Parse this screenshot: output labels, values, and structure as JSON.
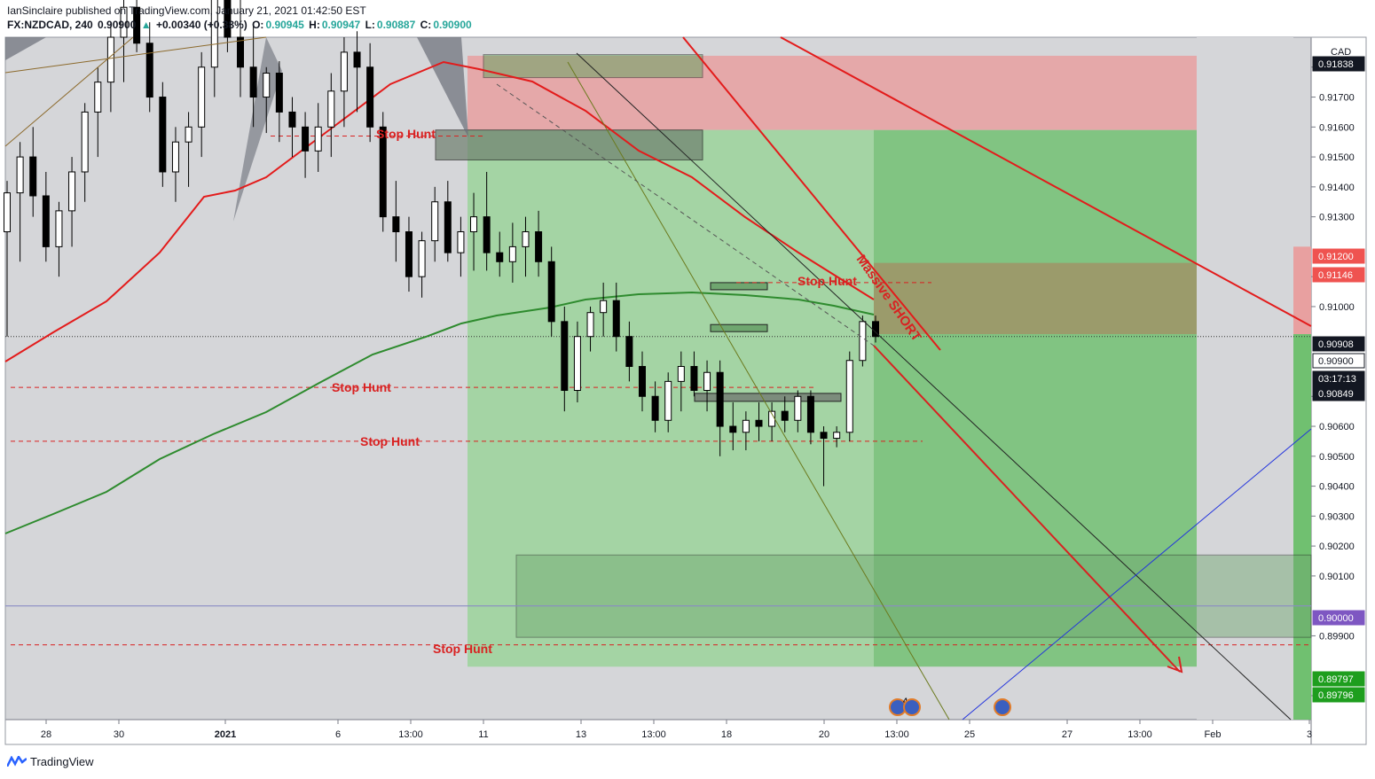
{
  "header": {
    "published_line": "IanSinclaire published on TradingView.com, January 21, 2021 01:42:50 EST",
    "symbol": "FX:NZDCAD, 240",
    "last": "0.90900",
    "change": "+0.00340 (+0.38%)",
    "o_label": "O:",
    "o": "0.90945",
    "h_label": "H:",
    "h": "0.90947",
    "l_label": "L:",
    "l": "0.90887",
    "c_label": "C:",
    "c": "0.90900"
  },
  "footer": {
    "brand": "TradingView"
  },
  "colors": {
    "up": "#ffffff",
    "down": "#000000",
    "ma_fast": "#e31b1b",
    "ma_slow": "#2e8b2e",
    "target_zone": "#6bbf6b",
    "stop_zone": "#e8a0a0",
    "annotation": "#d92121",
    "price_tag": "#131722"
  },
  "chart_data": {
    "type": "candlestick",
    "currency": "CAD",
    "ylim": [
      0.8962,
      0.919
    ],
    "x_ticks": [
      "28",
      "30",
      "2021",
      "6",
      "13:00",
      "11",
      "13",
      "13:00",
      "18",
      "20",
      "13:00",
      "25",
      "27",
      "13:00",
      "Feb",
      "3"
    ],
    "y_ticks": [
      "0.91800",
      "0.91700",
      "0.91600",
      "0.91500",
      "0.91400",
      "0.91300",
      "0.91100",
      "0.91000",
      "0.90700",
      "0.90600",
      "0.90500",
      "0.90400",
      "0.90300",
      "0.90200",
      "0.90100",
      "0.89900",
      "0.89700"
    ],
    "price_labels": [
      {
        "value": "0.91838",
        "kind": "dark"
      },
      {
        "value": "0.91200",
        "kind": "red"
      },
      {
        "value": "0.91146",
        "kind": "red"
      },
      {
        "value": "0.90908",
        "kind": "dark"
      },
      {
        "value": "0.90900",
        "kind": "white"
      },
      {
        "value": "03:17:13",
        "kind": "dark"
      },
      {
        "value": "0.90849",
        "kind": "dark"
      },
      {
        "value": "0.90000",
        "kind": "purple"
      },
      {
        "value": "0.89797",
        "kind": "green"
      },
      {
        "value": "0.89796",
        "kind": "green"
      }
    ],
    "annotations": [
      {
        "text": "Stop Hunt",
        "price": 0.9157
      },
      {
        "text": "Stop Hunt",
        "price": 0.911
      },
      {
        "text": "Stop Hunt",
        "price": 0.9073
      },
      {
        "text": "Stop Hunt",
        "price": 0.9055
      },
      {
        "text": "Stop Hunt",
        "price": 0.8987
      },
      {
        "text": "Massive SHORT",
        "price": 0.9105
      }
    ],
    "position": {
      "side": "short",
      "entry": 0.90908,
      "stop": 0.91146,
      "target": 0.89797,
      "prior_short": {
        "entry": 0.9159,
        "stop": 0.91838,
        "target": 0.89797
      }
    },
    "levels": [
      {
        "name": "stop-hunt-1",
        "value": 0.9157
      },
      {
        "name": "stop-hunt-2",
        "value": 0.9108
      },
      {
        "name": "stop-hunt-3",
        "value": 0.9073
      },
      {
        "name": "stop-hunt-4",
        "value": 0.9055
      },
      {
        "name": "stop-hunt-5",
        "value": 0.8987
      },
      {
        "name": "round-number",
        "value": 0.9
      },
      {
        "name": "last-price",
        "value": 0.909
      }
    ],
    "event_badges": [
      {
        "count": "4"
      },
      {
        "count": ""
      },
      {
        "count": ""
      }
    ],
    "candles": [
      {
        "o": 0.9125,
        "h": 0.9142,
        "l": 0.909,
        "c": 0.9138
      },
      {
        "o": 0.9138,
        "h": 0.9155,
        "l": 0.9115,
        "c": 0.915
      },
      {
        "o": 0.915,
        "h": 0.916,
        "l": 0.913,
        "c": 0.9137
      },
      {
        "o": 0.9137,
        "h": 0.9145,
        "l": 0.9115,
        "c": 0.912
      },
      {
        "o": 0.912,
        "h": 0.9135,
        "l": 0.911,
        "c": 0.9132
      },
      {
        "o": 0.9132,
        "h": 0.915,
        "l": 0.912,
        "c": 0.9145
      },
      {
        "o": 0.9145,
        "h": 0.9168,
        "l": 0.9135,
        "c": 0.9165
      },
      {
        "o": 0.9165,
        "h": 0.918,
        "l": 0.915,
        "c": 0.9175
      },
      {
        "o": 0.9175,
        "h": 0.9195,
        "l": 0.9165,
        "c": 0.919
      },
      {
        "o": 0.919,
        "h": 0.921,
        "l": 0.9175,
        "c": 0.92
      },
      {
        "o": 0.92,
        "h": 0.9215,
        "l": 0.9185,
        "c": 0.9188
      },
      {
        "o": 0.9188,
        "h": 0.9195,
        "l": 0.9165,
        "c": 0.917
      },
      {
        "o": 0.917,
        "h": 0.9175,
        "l": 0.914,
        "c": 0.9145
      },
      {
        "o": 0.9145,
        "h": 0.916,
        "l": 0.9135,
        "c": 0.9155
      },
      {
        "o": 0.9155,
        "h": 0.9165,
        "l": 0.914,
        "c": 0.916
      },
      {
        "o": 0.916,
        "h": 0.9185,
        "l": 0.915,
        "c": 0.918
      },
      {
        "o": 0.918,
        "h": 0.921,
        "l": 0.917,
        "c": 0.9205
      },
      {
        "o": 0.9205,
        "h": 0.9215,
        "l": 0.9185,
        "c": 0.919
      },
      {
        "o": 0.919,
        "h": 0.9205,
        "l": 0.917,
        "c": 0.918
      },
      {
        "o": 0.918,
        "h": 0.9195,
        "l": 0.916,
        "c": 0.917
      },
      {
        "o": 0.917,
        "h": 0.918,
        "l": 0.9158,
        "c": 0.9178
      },
      {
        "o": 0.9178,
        "h": 0.9182,
        "l": 0.9155,
        "c": 0.9165
      },
      {
        "o": 0.9165,
        "h": 0.917,
        "l": 0.915,
        "c": 0.916
      },
      {
        "o": 0.916,
        "h": 0.9165,
        "l": 0.9143,
        "c": 0.9152
      },
      {
        "o": 0.9152,
        "h": 0.9168,
        "l": 0.9145,
        "c": 0.916
      },
      {
        "o": 0.916,
        "h": 0.9178,
        "l": 0.915,
        "c": 0.9172
      },
      {
        "o": 0.9172,
        "h": 0.919,
        "l": 0.916,
        "c": 0.9185
      },
      {
        "o": 0.9185,
        "h": 0.9192,
        "l": 0.9165,
        "c": 0.918
      },
      {
        "o": 0.918,
        "h": 0.9188,
        "l": 0.9155,
        "c": 0.916
      },
      {
        "o": 0.916,
        "h": 0.9165,
        "l": 0.9125,
        "c": 0.913
      },
      {
        "o": 0.913,
        "h": 0.9142,
        "l": 0.9115,
        "c": 0.9125
      },
      {
        "o": 0.9125,
        "h": 0.913,
        "l": 0.9105,
        "c": 0.911
      },
      {
        "o": 0.911,
        "h": 0.9125,
        "l": 0.9103,
        "c": 0.9122
      },
      {
        "o": 0.9122,
        "h": 0.914,
        "l": 0.9115,
        "c": 0.9135
      },
      {
        "o": 0.9135,
        "h": 0.9142,
        "l": 0.9115,
        "c": 0.9118
      },
      {
        "o": 0.9118,
        "h": 0.913,
        "l": 0.911,
        "c": 0.9125
      },
      {
        "o": 0.9125,
        "h": 0.9138,
        "l": 0.9112,
        "c": 0.913
      },
      {
        "o": 0.913,
        "h": 0.9145,
        "l": 0.9112,
        "c": 0.9118
      },
      {
        "o": 0.9118,
        "h": 0.9125,
        "l": 0.911,
        "c": 0.9115
      },
      {
        "o": 0.9115,
        "h": 0.9128,
        "l": 0.9108,
        "c": 0.912
      },
      {
        "o": 0.912,
        "h": 0.913,
        "l": 0.911,
        "c": 0.9125
      },
      {
        "o": 0.9125,
        "h": 0.9132,
        "l": 0.911,
        "c": 0.9115
      },
      {
        "o": 0.9115,
        "h": 0.912,
        "l": 0.909,
        "c": 0.9095
      },
      {
        "o": 0.9095,
        "h": 0.91,
        "l": 0.9065,
        "c": 0.9072
      },
      {
        "o": 0.9072,
        "h": 0.9095,
        "l": 0.9068,
        "c": 0.909
      },
      {
        "o": 0.909,
        "h": 0.91,
        "l": 0.9085,
        "c": 0.9098
      },
      {
        "o": 0.9098,
        "h": 0.9108,
        "l": 0.909,
        "c": 0.9102
      },
      {
        "o": 0.9102,
        "h": 0.9108,
        "l": 0.9085,
        "c": 0.909
      },
      {
        "o": 0.909,
        "h": 0.9095,
        "l": 0.9075,
        "c": 0.908
      },
      {
        "o": 0.908,
        "h": 0.9085,
        "l": 0.9065,
        "c": 0.907
      },
      {
        "o": 0.907,
        "h": 0.9075,
        "l": 0.9058,
        "c": 0.9062
      },
      {
        "o": 0.9062,
        "h": 0.9078,
        "l": 0.9058,
        "c": 0.9075
      },
      {
        "o": 0.9075,
        "h": 0.9085,
        "l": 0.9065,
        "c": 0.908
      },
      {
        "o": 0.908,
        "h": 0.9085,
        "l": 0.907,
        "c": 0.9072
      },
      {
        "o": 0.9072,
        "h": 0.9082,
        "l": 0.9065,
        "c": 0.9078
      },
      {
        "o": 0.9078,
        "h": 0.9082,
        "l": 0.905,
        "c": 0.906
      },
      {
        "o": 0.906,
        "h": 0.9068,
        "l": 0.9052,
        "c": 0.9058
      },
      {
        "o": 0.9058,
        "h": 0.9065,
        "l": 0.9052,
        "c": 0.9062
      },
      {
        "o": 0.9062,
        "h": 0.9068,
        "l": 0.9055,
        "c": 0.906
      },
      {
        "o": 0.906,
        "h": 0.9068,
        "l": 0.9055,
        "c": 0.9065
      },
      {
        "o": 0.9065,
        "h": 0.907,
        "l": 0.9058,
        "c": 0.9062
      },
      {
        "o": 0.9062,
        "h": 0.9072,
        "l": 0.9058,
        "c": 0.907
      },
      {
        "o": 0.907,
        "h": 0.9072,
        "l": 0.9054,
        "c": 0.9058
      },
      {
        "o": 0.9058,
        "h": 0.906,
        "l": 0.904,
        "c": 0.9056
      },
      {
        "o": 0.9056,
        "h": 0.906,
        "l": 0.9053,
        "c": 0.9058
      },
      {
        "o": 0.9058,
        "h": 0.9085,
        "l": 0.9055,
        "c": 0.9082
      },
      {
        "o": 0.9082,
        "h": 0.9097,
        "l": 0.908,
        "c": 0.9095
      },
      {
        "o": 0.9095,
        "h": 0.9097,
        "l": 0.9088,
        "c": 0.909
      }
    ]
  }
}
